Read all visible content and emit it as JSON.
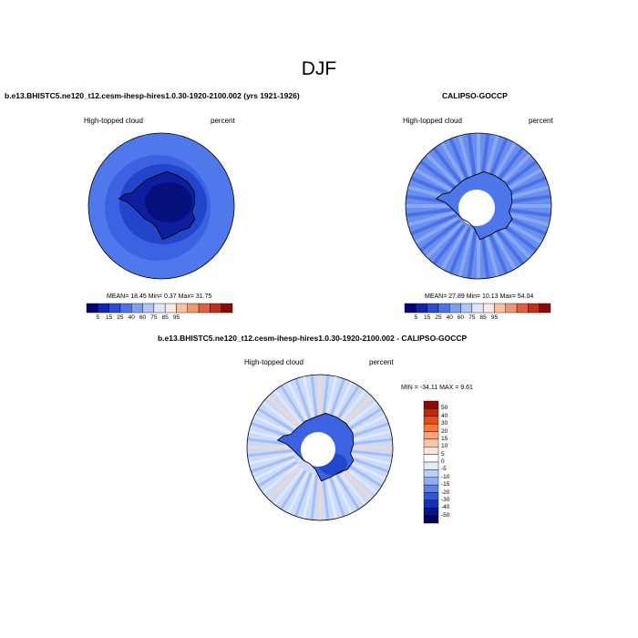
{
  "figure": {
    "title": "DJF"
  },
  "panels": [
    {
      "title": "b.e13.BHISTC5.ne120_t12.cesm-ihesp-hires1.0.30-1920-2100.002 (yrs 1921-1926)",
      "left_label": "High-topped cloud",
      "right_label": "percent",
      "stats": "MEAN= 18.45  Min=  0.37  Max= 31.75"
    },
    {
      "title": "CALIPSO-GOCCP",
      "left_label": "High-topped cloud",
      "right_label": "percent",
      "stats": "MEAN= 27.89  Min= 10.13  Max= 54.04"
    },
    {
      "title": "b.e13.BHISTC5.ne120_t12.cesm-ihesp-hires1.0.30-1920-2100.002 - CALIPSO-GOCCP",
      "left_label": "High-topped cloud",
      "right_label": "percent",
      "stats": "MIN = -34.11 MAX =   9.61"
    }
  ],
  "colorbar_abs": {
    "labels": [
      "5",
      "15",
      "25",
      "40",
      "60",
      "75",
      "85",
      "95"
    ],
    "colors": [
      "#00007a",
      "#1024b8",
      "#2a4cd8",
      "#4a72ec",
      "#7e9ef4",
      "#afc4f8",
      "#dde6fb",
      "#fbe8de",
      "#f7c1a4",
      "#f09670",
      "#e1603e",
      "#c2301c",
      "#8e0808"
    ]
  },
  "colorbar_diff": {
    "labels": [
      "50",
      "40",
      "30",
      "20",
      "15",
      "10",
      "5",
      "0",
      "-5",
      "-10",
      "-15",
      "-20",
      "-30",
      "-40",
      "-50"
    ],
    "colors": [
      "#8e0808",
      "#c4280c",
      "#e45014",
      "#f27a3c",
      "#f7a47a",
      "#fac6aa",
      "#fde4d6",
      "#ffffff",
      "#e2ecfc",
      "#bcd1f8",
      "#8eaef2",
      "#5a84ea",
      "#2f58da",
      "#1430b8",
      "#04157e",
      "#000060"
    ]
  }
}
